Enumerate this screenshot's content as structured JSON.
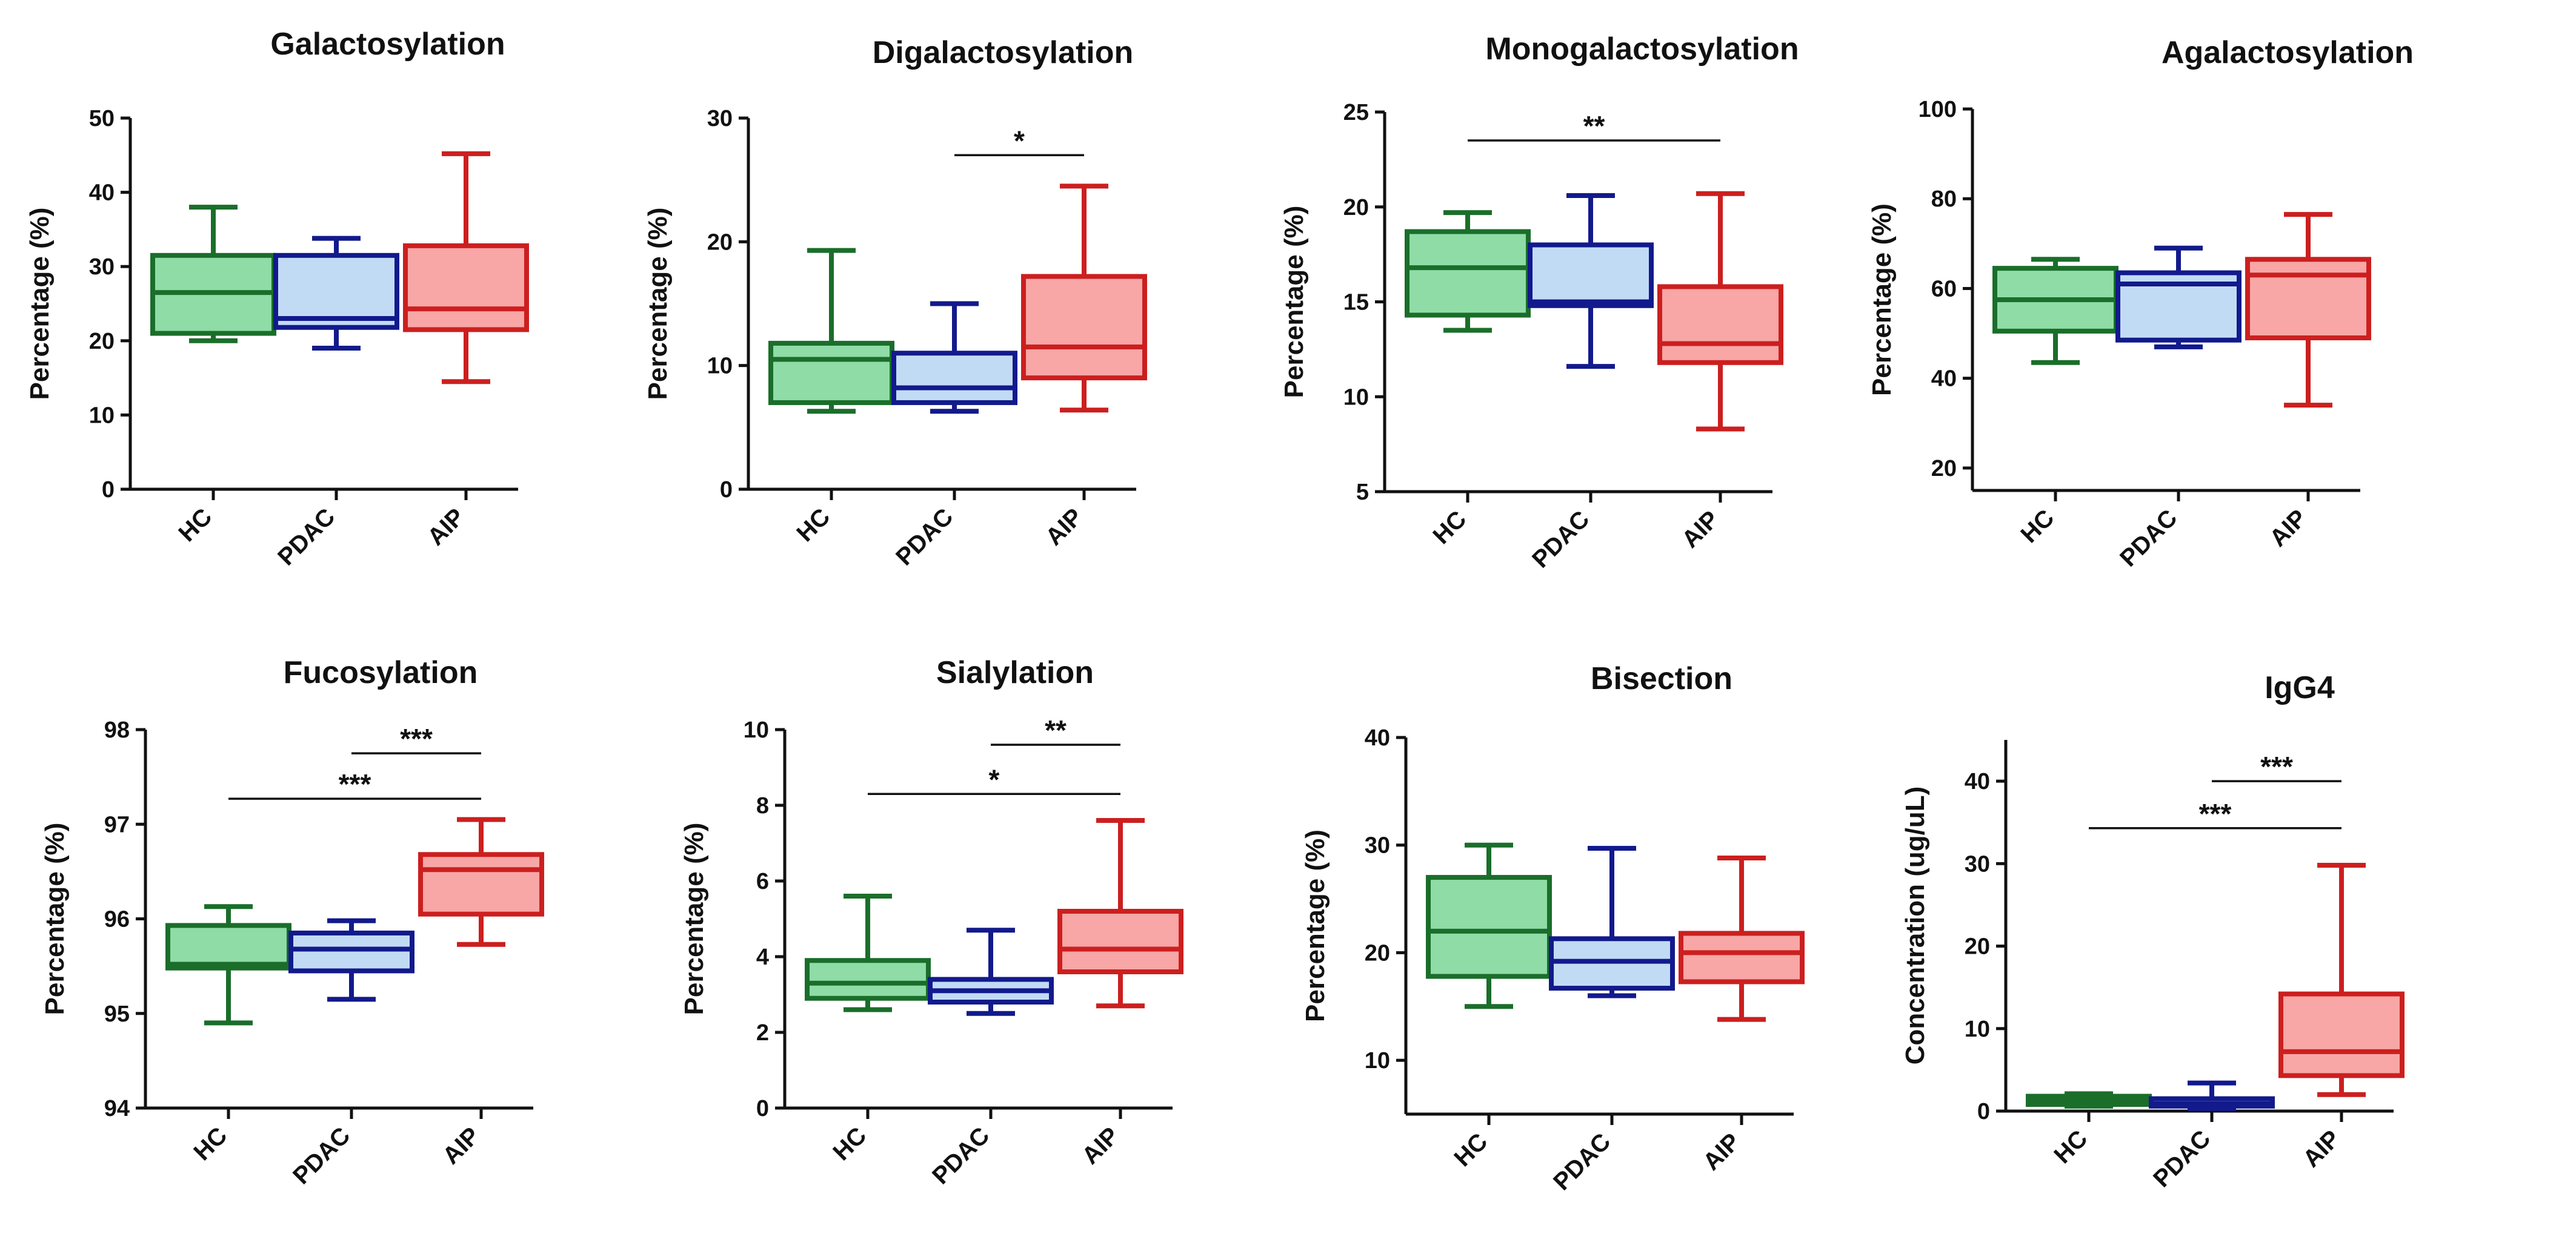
{
  "colors": {
    "HC": {
      "stroke": "#1a6e2a",
      "fill": "#8fdca7"
    },
    "PDAC": {
      "stroke": "#121a8c",
      "fill": "#c2dbf5"
    },
    "AIP": {
      "stroke": "#cc1f1f",
      "fill": "#f8a6a6"
    }
  },
  "chart_data": [
    {
      "type": "box",
      "title": "Galactosylation",
      "ylabel": "Percentage (%)",
      "xlabel": "",
      "categories": [
        "HC",
        "PDAC",
        "AIP"
      ],
      "ylim": [
        0,
        50
      ],
      "yticks": [
        0,
        10,
        20,
        30,
        40,
        50
      ],
      "boxes": [
        {
          "group": "HC",
          "min": 20,
          "q1": 21,
          "median": 26.5,
          "q3": 31.5,
          "max": 38
        },
        {
          "group": "PDAC",
          "min": 19,
          "q1": 21.8,
          "median": 23,
          "q3": 31.5,
          "max": 33.8
        },
        {
          "group": "AIP",
          "min": 14.5,
          "q1": 21.5,
          "median": 24.3,
          "q3": 32.8,
          "max": 45.2
        }
      ],
      "significance": []
    },
    {
      "type": "box",
      "title": "Digalactosylation",
      "ylabel": "Percentage (%)",
      "xlabel": "",
      "categories": [
        "HC",
        "PDAC",
        "AIP"
      ],
      "ylim": [
        0,
        30
      ],
      "yticks": [
        0,
        10,
        20,
        30
      ],
      "boxes": [
        {
          "group": "HC",
          "min": 6.3,
          "q1": 7,
          "median": 10.5,
          "q3": 11.8,
          "max": 19.3
        },
        {
          "group": "PDAC",
          "min": 6.3,
          "q1": 7,
          "median": 8.2,
          "q3": 11,
          "max": 15
        },
        {
          "group": "AIP",
          "min": 6.4,
          "q1": 9,
          "median": 11.5,
          "q3": 17.2,
          "max": 24.5
        }
      ],
      "significance": [
        {
          "from": "PDAC",
          "to": "AIP",
          "y": 27,
          "label": "*"
        }
      ]
    },
    {
      "type": "box",
      "title": "Monogalactosylation",
      "ylabel": "Percentage (%)",
      "xlabel": "",
      "categories": [
        "HC",
        "PDAC",
        "AIP"
      ],
      "ylim": [
        5,
        25
      ],
      "yticks": [
        5,
        10,
        15,
        20,
        25
      ],
      "boxes": [
        {
          "group": "HC",
          "min": 13.5,
          "q1": 14.3,
          "median": 16.8,
          "q3": 18.7,
          "max": 19.7
        },
        {
          "group": "PDAC",
          "min": 11.6,
          "q1": 14.8,
          "median": 15,
          "q3": 18,
          "max": 20.6
        },
        {
          "group": "AIP",
          "min": 8.3,
          "q1": 11.8,
          "median": 12.8,
          "q3": 15.8,
          "max": 20.7
        }
      ],
      "significance": [
        {
          "from": "HC",
          "to": "AIP",
          "y": 23.5,
          "label": "**"
        }
      ]
    },
    {
      "type": "box",
      "title": "Agalactosylation",
      "ylabel": "Percentage (%)",
      "xlabel": "",
      "categories": [
        "HC",
        "PDAC",
        "AIP"
      ],
      "ylim": [
        15,
        100
      ],
      "yticks": [
        20,
        40,
        60,
        80,
        100
      ],
      "boxes": [
        {
          "group": "HC",
          "min": 43.5,
          "q1": 50.5,
          "median": 57.5,
          "q3": 64.5,
          "max": 66.5
        },
        {
          "group": "PDAC",
          "min": 47,
          "q1": 48.5,
          "median": 61,
          "q3": 63.5,
          "max": 69
        },
        {
          "group": "AIP",
          "min": 34,
          "q1": 49,
          "median": 63,
          "q3": 66.5,
          "max": 76.5
        }
      ],
      "significance": []
    },
    {
      "type": "box",
      "title": "Fucosylation",
      "ylabel": "Percentage (%)",
      "xlabel": "",
      "categories": [
        "HC",
        "PDAC",
        "AIP"
      ],
      "ylim": [
        94,
        98
      ],
      "yticks": [
        94,
        95,
        96,
        97,
        98
      ],
      "boxes": [
        {
          "group": "HC",
          "min": 94.9,
          "q1": 95.48,
          "median": 95.52,
          "q3": 95.93,
          "max": 96.13
        },
        {
          "group": "PDAC",
          "min": 95.15,
          "q1": 95.45,
          "median": 95.68,
          "q3": 95.85,
          "max": 95.98
        },
        {
          "group": "AIP",
          "min": 95.73,
          "q1": 96.05,
          "median": 96.52,
          "q3": 96.68,
          "max": 97.05
        }
      ],
      "significance": [
        {
          "from": "PDAC",
          "to": "AIP",
          "y": 97.75,
          "label": "***"
        },
        {
          "from": "HC",
          "to": "AIP",
          "y": 97.27,
          "label": "***"
        }
      ]
    },
    {
      "type": "box",
      "title": "Sialylation",
      "ylabel": "Percentage (%)",
      "xlabel": "",
      "categories": [
        "HC",
        "PDAC",
        "AIP"
      ],
      "ylim": [
        0,
        10
      ],
      "yticks": [
        0,
        2,
        4,
        6,
        8,
        10
      ],
      "boxes": [
        {
          "group": "HC",
          "min": 2.6,
          "q1": 2.9,
          "median": 3.3,
          "q3": 3.9,
          "max": 5.6
        },
        {
          "group": "PDAC",
          "min": 2.5,
          "q1": 2.8,
          "median": 3.1,
          "q3": 3.4,
          "max": 4.7
        },
        {
          "group": "AIP",
          "min": 2.7,
          "q1": 3.6,
          "median": 4.2,
          "q3": 5.2,
          "max": 7.6
        }
      ],
      "significance": [
        {
          "from": "PDAC",
          "to": "AIP",
          "y": 9.6,
          "label": "**"
        },
        {
          "from": "HC",
          "to": "AIP",
          "y": 8.3,
          "label": "*"
        }
      ]
    },
    {
      "type": "box",
      "title": "Bisection",
      "ylabel": "Percentage (%)",
      "xlabel": "",
      "categories": [
        "HC",
        "PDAC",
        "AIP"
      ],
      "ylim": [
        5,
        40
      ],
      "yticks": [
        10,
        20,
        30,
        40
      ],
      "boxes": [
        {
          "group": "HC",
          "min": 15,
          "q1": 17.8,
          "median": 22,
          "q3": 27,
          "max": 30
        },
        {
          "group": "PDAC",
          "min": 16,
          "q1": 16.7,
          "median": 19.2,
          "q3": 21.3,
          "max": 29.7
        },
        {
          "group": "AIP",
          "min": 13.8,
          "q1": 17.3,
          "median": 20,
          "q3": 21.8,
          "max": 28.8
        }
      ],
      "significance": []
    },
    {
      "type": "box",
      "title": "IgG4",
      "ylabel": "Concentration (ug/uL)",
      "xlabel": "",
      "categories": [
        "HC",
        "PDAC",
        "AIP"
      ],
      "ylim": [
        0,
        45
      ],
      "yticks": [
        0,
        10,
        20,
        30,
        40
      ],
      "boxes": [
        {
          "group": "HC",
          "min": 0.6,
          "q1": 0.8,
          "median": 1.3,
          "q3": 1.8,
          "max": 2.1
        },
        {
          "group": "PDAC",
          "min": 0.3,
          "q1": 0.6,
          "median": 0.9,
          "q3": 1.5,
          "max": 3.4
        },
        {
          "group": "AIP",
          "min": 2,
          "q1": 4.3,
          "median": 7.2,
          "q3": 14.2,
          "max": 29.8
        }
      ],
      "significance": [
        {
          "from": "PDAC",
          "to": "AIP",
          "y": 40,
          "label": "***"
        },
        {
          "from": "HC",
          "to": "AIP",
          "y": 34.3,
          "label": "***"
        }
      ]
    }
  ]
}
